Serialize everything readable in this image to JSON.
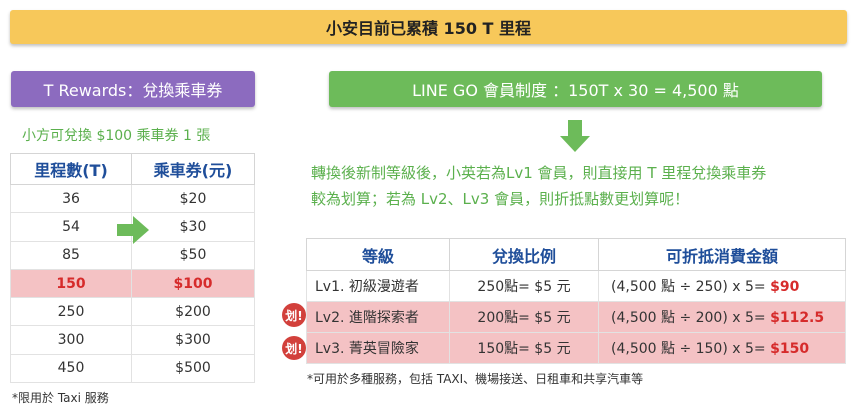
{
  "banner": "小安目前已累積 150 T 里程",
  "t_rewards": {
    "header": "T Rewards：兌換乘車券",
    "subtitle": "小方可兌換 $100 乘車券 1 張",
    "columns": [
      "里程數(T)",
      "乘車券(元)"
    ],
    "rows": [
      [
        "36",
        "$20"
      ],
      [
        "54",
        "$30"
      ],
      [
        "85",
        "$50"
      ],
      [
        "150",
        "$100"
      ],
      [
        "250",
        "$200"
      ],
      [
        "300",
        "$300"
      ],
      [
        "450",
        "$500"
      ]
    ],
    "highlight_row": 3,
    "footnote": "*限用於 Taxi 服務"
  },
  "line_go": {
    "header": "LINE GO 會員制度 ：150T x 30 = 4,500 點",
    "description": [
      "轉換後新制等級後，小英若為Lv1 會員，則直接用 T 里程兌換乘車券",
      "較為划算；若為 Lv2、Lv3 會員，則折抵點數更划算呢！"
    ],
    "columns": [
      "等級",
      "兌換比例",
      "可折抵消費金額"
    ],
    "rows": [
      {
        "level": "Lv1. 初級漫遊者",
        "ratio": "250點= $5 元",
        "formula": "(4,500 點 ÷ 250) x 5= ",
        "amount": "$90"
      },
      {
        "level": "Lv2. 進階探索者",
        "ratio": "200點= $5 元",
        "formula": "(4,500 點 ÷ 200) x 5= ",
        "amount": "$112.5"
      },
      {
        "level": "Lv3. 菁英冒險家",
        "ratio": "150點= $5 元",
        "formula": "(4,500 點 ÷ 150) x 5= ",
        "amount": "$150"
      }
    ],
    "badge_label": "划!",
    "footnote": "*可用於多種服務，包括 TAXI、機場接送、日租車和共享汽車等"
  },
  "colors": {
    "banner": "#f7c85a",
    "purple": "#8c6bbf",
    "green": "#6dbb5a",
    "highlight": "#f4c2c4",
    "red": "#d62b2b",
    "header_blue": "#1f4e9a"
  }
}
